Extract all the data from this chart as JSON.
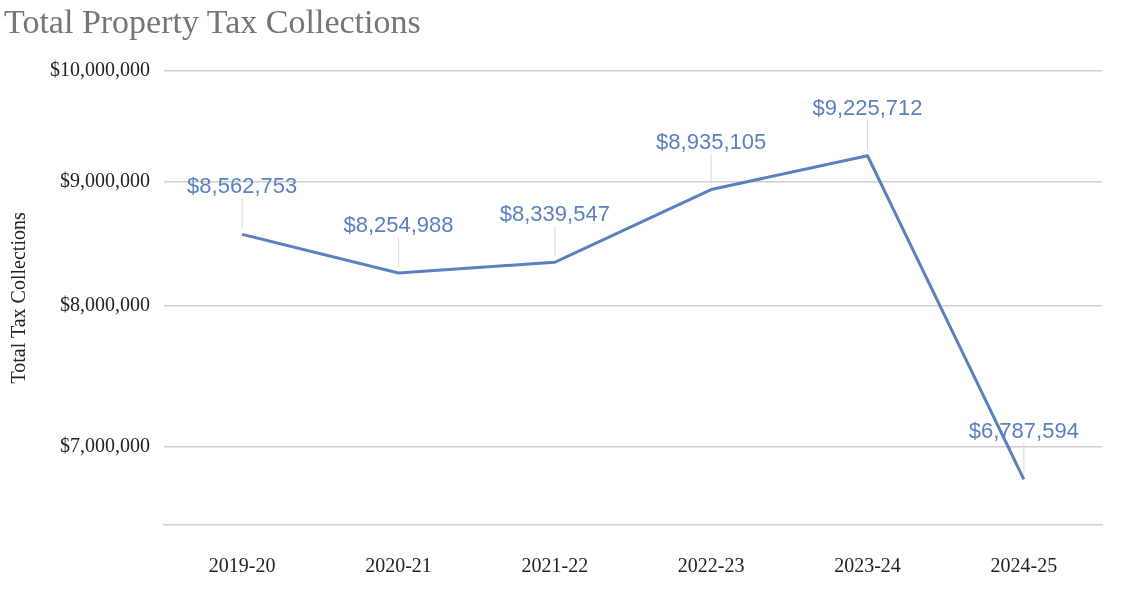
{
  "chart_data": {
    "type": "line",
    "title": "Total Property Tax Collections",
    "ylabel": "Total Tax Collections",
    "categories": [
      "2019-20",
      "2020-21",
      "2021-22",
      "2022-23",
      "2023-24",
      "2024-25"
    ],
    "series": [
      {
        "color": "#5a80c0",
        "values": [
          8562753,
          8254988,
          8339547,
          8935105,
          9225712,
          6787594
        ],
        "value_labels": [
          "$8,562,753",
          "$8,254,988",
          "$8,339,547",
          "$8,935,105",
          "$9,225,712",
          "$6,787,594"
        ]
      }
    ],
    "log": "y",
    "ylim": [
      6500000,
      10000000
    ],
    "yticks": [
      {
        "value": 7000000,
        "label": "$7,000,000"
      },
      {
        "value": 8000000,
        "label": "$8,000,000"
      },
      {
        "value": 9000000,
        "label": "$9,000,000"
      },
      {
        "value": 10000000,
        "label": "$10,000,000"
      }
    ],
    "grid": "y",
    "legend": false,
    "marker": "none",
    "line_style": "solid"
  }
}
